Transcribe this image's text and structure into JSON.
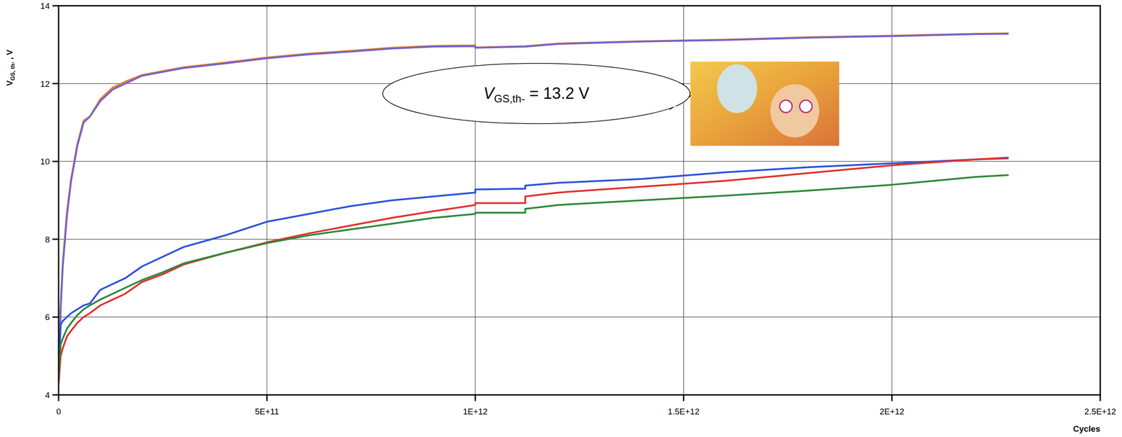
{
  "chart_data": {
    "type": "line",
    "x_label": "Cycles",
    "y_label": [
      "V",
      "GS, th-",
      " , V"
    ],
    "annotation": [
      "V",
      "GS,th-",
      " = 13.2 V"
    ],
    "x": [
      0,
      5000000000.0,
      10000000000.0,
      20000000000.0,
      30000000000.0,
      45000000000.0,
      60000000000.0,
      75000000000.0,
      100000000000.0,
      130000000000.0,
      160000000000.0,
      200000000000.0,
      250000000000.0,
      300000000000.0,
      400000000000.0,
      500000000000.0,
      600000000000.0,
      700000000000.0,
      800000000000.0,
      900000000000.0,
      1000000000000.0,
      1000000000000.0,
      1120000000000.0,
      1120000000000.0,
      1200000000000.0,
      1400000000000.0,
      1600000000000.0,
      1800000000000.0,
      2000000000000.0,
      2200000000000.0,
      2280000000000.0
    ],
    "series": [
      {
        "color": "#e8802a",
        "values": [
          4.3,
          6.3,
          7.4,
          8.7,
          9.55,
          10.45,
          11.05,
          11.15,
          11.6,
          11.9,
          12.05,
          12.22,
          12.32,
          12.42,
          12.54,
          12.67,
          12.77,
          12.84,
          12.92,
          12.97,
          12.98,
          12.93,
          12.96,
          12.96,
          13.03,
          13.09,
          13.13,
          13.19,
          13.23,
          13.28,
          13.29
        ]
      },
      {
        "color": "#7462cc",
        "values": [
          4.3,
          6.2,
          7.3,
          8.6,
          9.5,
          10.4,
          11.0,
          11.15,
          11.55,
          11.85,
          12.0,
          12.2,
          12.3,
          12.4,
          12.52,
          12.65,
          12.75,
          12.82,
          12.9,
          12.95,
          12.96,
          12.92,
          12.95,
          12.95,
          13.02,
          13.08,
          13.12,
          13.18,
          13.22,
          13.27,
          13.28
        ]
      },
      {
        "color": "#2f52dc",
        "values": [
          4.5,
          5.8,
          5.9,
          6.0,
          6.1,
          6.2,
          6.3,
          6.35,
          6.7,
          6.85,
          7.0,
          7.3,
          7.55,
          7.8,
          8.1,
          8.45,
          8.65,
          8.85,
          9.0,
          9.1,
          9.2,
          9.28,
          9.3,
          9.38,
          9.45,
          9.55,
          9.72,
          9.85,
          9.95,
          10.05,
          10.08
        ]
      },
      {
        "color": "#e03232",
        "values": [
          4.3,
          5.0,
          5.2,
          5.5,
          5.65,
          5.85,
          6.0,
          6.1,
          6.3,
          6.45,
          6.6,
          6.9,
          7.1,
          7.35,
          7.65,
          7.92,
          8.15,
          8.35,
          8.55,
          8.72,
          8.88,
          8.93,
          8.93,
          9.1,
          9.2,
          9.35,
          9.5,
          9.7,
          9.9,
          10.05,
          10.1
        ]
      },
      {
        "color": "#2e8a3c",
        "values": [
          4.5,
          5.3,
          5.45,
          5.7,
          5.85,
          6.05,
          6.2,
          6.3,
          6.45,
          6.6,
          6.75,
          6.95,
          7.15,
          7.38,
          7.65,
          7.9,
          8.1,
          8.25,
          8.4,
          8.55,
          8.65,
          8.68,
          8.68,
          8.78,
          8.88,
          9.0,
          9.12,
          9.25,
          9.4,
          9.6,
          9.65
        ]
      }
    ],
    "xlim": [
      0,
      2500000000000.0
    ],
    "xticks": [
      0,
      {
        "value": 500000000000.0,
        "label": "5E+11"
      },
      {
        "value": 1000000000000.0,
        "label": "1E+12"
      },
      {
        "value": 1500000000000.0,
        "label": "1.5E+12"
      },
      {
        "value": 2000000000000.0,
        "label": "2E+12"
      },
      {
        "value": 2500000000000.0,
        "label": "2.5E+12"
      }
    ],
    "ylim": [
      4,
      14
    ],
    "yticks": [
      4,
      6,
      8,
      10,
      12,
      14
    ],
    "grid": true
  }
}
